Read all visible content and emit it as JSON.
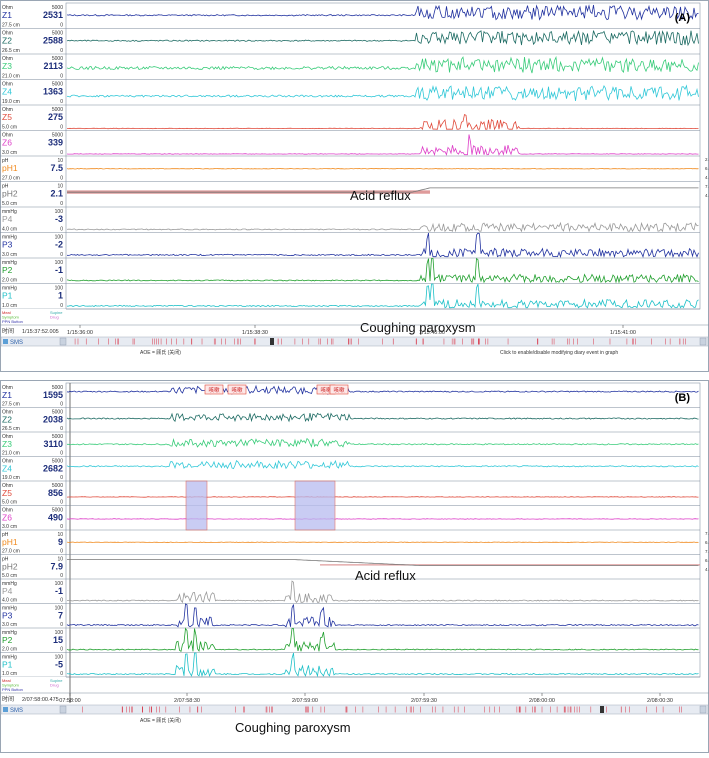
{
  "panels": [
    {
      "id": "A",
      "panel_label": "(A)",
      "reflux_label": "Acid reflux",
      "cough_label": "Coughing paroxysm",
      "time_label": "时间",
      "cursor_time": "1/15:37:52.005",
      "time_ticks": [
        "1/15:36:00",
        "1/15:38:30",
        "1/15:40:00",
        "1/15:41:00"
      ],
      "footer_left": "AOE = 顾氏 (关闭)",
      "footer_right": "Click to enable/disable modifying diary event in graph",
      "legend_left": [
        "Meal",
        "Symptom",
        "PPN Button"
      ],
      "legend_right": [
        "Supine",
        "Drug"
      ],
      "sms": "SMS"
    },
    {
      "id": "B",
      "panel_label": "(B)",
      "reflux_label": "Acid reflux",
      "cough_label": "Coughing paroxysm",
      "time_label": "时间",
      "cursor_time": "2/07:58:00.475",
      "time_ticks": [
        "07:58:00",
        "2/07:58:30",
        "2/07:59:00",
        "2/07:59:30",
        "2/08:00:00",
        "2/08:00:30"
      ],
      "footer_left": "AOE = 顾氏 (关闭)",
      "footer_right": "",
      "legend_left": [
        "Meal",
        "Symptom",
        "PPN Button"
      ],
      "legend_right": [
        "Supine",
        "Drug"
      ],
      "sms": "SMS",
      "event_boxes": [
        "咳嗽",
        "咳嗽",
        "咳嗽",
        "咳嗽"
      ]
    }
  ],
  "chart_data": [
    {
      "type": "line",
      "panel": "A",
      "channels": [
        {
          "name": "Z1",
          "unit": "Ohm",
          "position": "27.5 cm",
          "value": 2531,
          "range": [
            0,
            5000
          ],
          "color": "#2233a0"
        },
        {
          "name": "Z2",
          "unit": "Ohm",
          "position": "26.5 cm",
          "value": 2588,
          "range": [
            0,
            5000
          ],
          "color": "#1d6b63"
        },
        {
          "name": "Z3",
          "unit": "Ohm",
          "position": "21.0 cm",
          "value": 2113,
          "range": [
            0,
            5000
          ],
          "color": "#3acc7a"
        },
        {
          "name": "Z4",
          "unit": "Ohm",
          "position": "19.0 cm",
          "value": 1363,
          "range": [
            0,
            5000
          ],
          "color": "#33c8d8"
        },
        {
          "name": "Z5",
          "unit": "Ohm",
          "position": "5.0 cm",
          "value": 275,
          "range": [
            0,
            5000
          ],
          "color": "#e04b3c"
        },
        {
          "name": "Z6",
          "unit": "Ohm",
          "position": "3.0 cm",
          "value": 339,
          "range": [
            0,
            5000
          ],
          "color": "#dd3fc8"
        },
        {
          "name": "pH1",
          "unit": "pH",
          "position": "27.0 cm",
          "value": 7.5,
          "range": [
            0,
            10
          ],
          "color": "#f08a1e"
        },
        {
          "name": "pH2",
          "unit": "pH",
          "position": "5.0 cm",
          "value": 2.1,
          "range": [
            0,
            10
          ],
          "color": "#777777"
        },
        {
          "name": "P4",
          "unit": "mmHg",
          "position": "4.0 cm",
          "value": -3,
          "range": [
            0,
            100
          ],
          "color": "#9a9a9a"
        },
        {
          "name": "P3",
          "unit": "mmHg",
          "position": "3.0 cm",
          "value": -2,
          "range": [
            0,
            100
          ],
          "color": "#2233a0"
        },
        {
          "name": "P2",
          "unit": "mmHg",
          "position": "2.0 cm",
          "value": -1,
          "range": [
            0,
            100
          ],
          "color": "#22a02f"
        },
        {
          "name": "P1",
          "unit": "mmHg",
          "position": "1.0 cm",
          "value": 1,
          "range": [
            0,
            100
          ],
          "color": "#1dc0c8"
        }
      ],
      "right_scale": [
        "2.0",
        "6.0",
        "4.0",
        "7.0",
        "4.0"
      ]
    },
    {
      "type": "line",
      "panel": "B",
      "channels": [
        {
          "name": "Z1",
          "unit": "Ohm",
          "position": "27.5 cm",
          "value": 1595,
          "range": [
            0,
            5000
          ],
          "color": "#2233a0"
        },
        {
          "name": "Z2",
          "unit": "Ohm",
          "position": "26.5 cm",
          "value": 2038,
          "range": [
            0,
            5000
          ],
          "color": "#1d6b63"
        },
        {
          "name": "Z3",
          "unit": "Ohm",
          "position": "21.0 cm",
          "value": 3110,
          "range": [
            0,
            5000
          ],
          "color": "#3acc7a"
        },
        {
          "name": "Z4",
          "unit": "Ohm",
          "position": "19.0 cm",
          "value": 2682,
          "range": [
            0,
            5000
          ],
          "color": "#33c8d8"
        },
        {
          "name": "Z5",
          "unit": "Ohm",
          "position": "5.0 cm",
          "value": 856,
          "range": [
            0,
            5000
          ],
          "color": "#e04b3c"
        },
        {
          "name": "Z6",
          "unit": "Ohm",
          "position": "3.0 cm",
          "value": 490,
          "range": [
            0,
            5000
          ],
          "color": "#dd3fc8"
        },
        {
          "name": "pH1",
          "unit": "pH",
          "position": "27.0 cm",
          "value": 9.0,
          "range": [
            0,
            10
          ],
          "color": "#f08a1e"
        },
        {
          "name": "pH2",
          "unit": "pH",
          "position": "5.0 cm",
          "value": 7.9,
          "range": [
            0,
            10
          ],
          "color": "#777777"
        },
        {
          "name": "P4",
          "unit": "mmHg",
          "position": "4.0 cm",
          "value": -1,
          "range": [
            0,
            100
          ],
          "color": "#9a9a9a"
        },
        {
          "name": "P3",
          "unit": "mmHg",
          "position": "3.0 cm",
          "value": 7,
          "range": [
            0,
            100
          ],
          "color": "#2233a0"
        },
        {
          "name": "P2",
          "unit": "mmHg",
          "position": "2.0 cm",
          "value": 15,
          "range": [
            0,
            100
          ],
          "color": "#22a02f"
        },
        {
          "name": "P1",
          "unit": "mmHg",
          "position": "1.0 cm",
          "value": -5,
          "range": [
            0,
            100
          ],
          "color": "#1dc0c8"
        }
      ],
      "right_scale": [
        "7.0",
        "6.0",
        "7.0",
        "6.0",
        "4.0"
      ]
    }
  ]
}
